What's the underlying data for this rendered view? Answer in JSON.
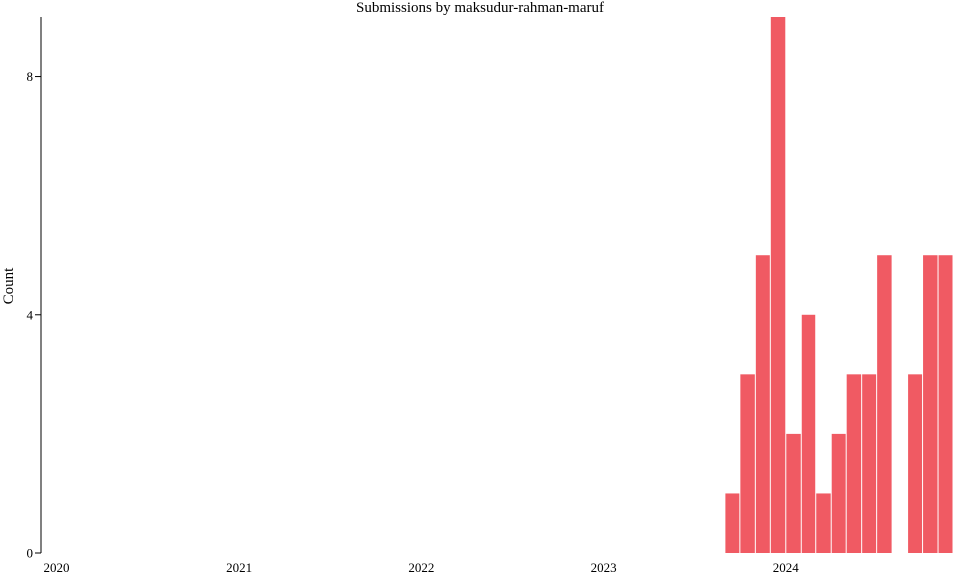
{
  "chart_data": {
    "type": "bar",
    "title": "Submissions by maksudur-rahman-maruf",
    "xlabel": "",
    "ylabel": "Count",
    "x_domain": [
      "2019-12-01",
      "2024-12-15"
    ],
    "ylim": [
      0,
      9
    ],
    "y_ticks": [
      0,
      4,
      8
    ],
    "x_ticks": [
      {
        "label": "2020",
        "date": "2020-01-01"
      },
      {
        "label": "2021",
        "date": "2021-01-01"
      },
      {
        "label": "2022",
        "date": "2022-01-01"
      },
      {
        "label": "2023",
        "date": "2023-01-01"
      },
      {
        "label": "2024",
        "date": "2024-01-01"
      }
    ],
    "color": "#f05a63",
    "bars": [
      {
        "start": "2023-09-01",
        "end": "2023-10-01",
        "value": 1
      },
      {
        "start": "2023-10-01",
        "end": "2023-11-01",
        "value": 3
      },
      {
        "start": "2023-11-01",
        "end": "2023-12-01",
        "value": 5
      },
      {
        "start": "2023-12-01",
        "end": "2024-01-01",
        "value": 9
      },
      {
        "start": "2024-01-01",
        "end": "2024-02-01",
        "value": 2
      },
      {
        "start": "2024-02-01",
        "end": "2024-03-01",
        "value": 4
      },
      {
        "start": "2024-03-01",
        "end": "2024-04-01",
        "value": 1
      },
      {
        "start": "2024-04-01",
        "end": "2024-05-01",
        "value": 2
      },
      {
        "start": "2024-05-01",
        "end": "2024-06-01",
        "value": 3
      },
      {
        "start": "2024-06-01",
        "end": "2024-07-01",
        "value": 3
      },
      {
        "start": "2024-07-01",
        "end": "2024-08-01",
        "value": 5
      },
      {
        "start": "2024-08-01",
        "end": "2024-09-01",
        "value": 0
      },
      {
        "start": "2024-09-01",
        "end": "2024-10-01",
        "value": 3
      },
      {
        "start": "2024-10-01",
        "end": "2024-11-01",
        "value": 5
      },
      {
        "start": "2024-11-01",
        "end": "2024-12-01",
        "value": 5
      }
    ]
  }
}
